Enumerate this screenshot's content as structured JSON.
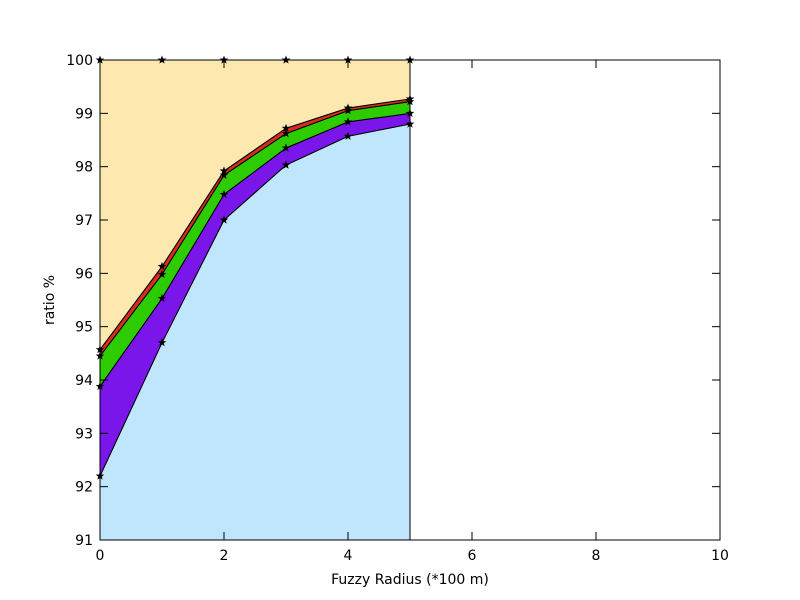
{
  "chart_data": {
    "type": "area",
    "xlabel": "Fuzzy Radius (*100 m)",
    "ylabel": "ratio %",
    "xlim": [
      0,
      10
    ],
    "ylim": [
      91,
      100
    ],
    "xticks": [
      0,
      2,
      4,
      6,
      8,
      10
    ],
    "yticks": [
      91,
      92,
      93,
      94,
      95,
      96,
      97,
      98,
      99,
      100
    ],
    "x": [
      0,
      1,
      2,
      3,
      4,
      5
    ],
    "stacked_upper_bounds": [
      {
        "color": "#bfe6fd",
        "values": [
          92.2,
          94.7,
          97.0,
          98.03,
          98.57,
          98.8
        ]
      },
      {
        "color": "#7a16ea",
        "values": [
          93.88,
          95.53,
          97.48,
          98.35,
          98.84,
          99.0
        ]
      },
      {
        "color": "#2ccc00",
        "values": [
          94.45,
          95.98,
          97.84,
          98.62,
          99.05,
          99.22
        ]
      },
      {
        "color": "#d62d20",
        "values": [
          94.57,
          96.13,
          97.92,
          98.72,
          99.1,
          99.27
        ]
      },
      {
        "color": "#fde9b0",
        "values": [
          100,
          100,
          100,
          100,
          100,
          100
        ]
      }
    ],
    "grid": false,
    "marker": "star"
  }
}
